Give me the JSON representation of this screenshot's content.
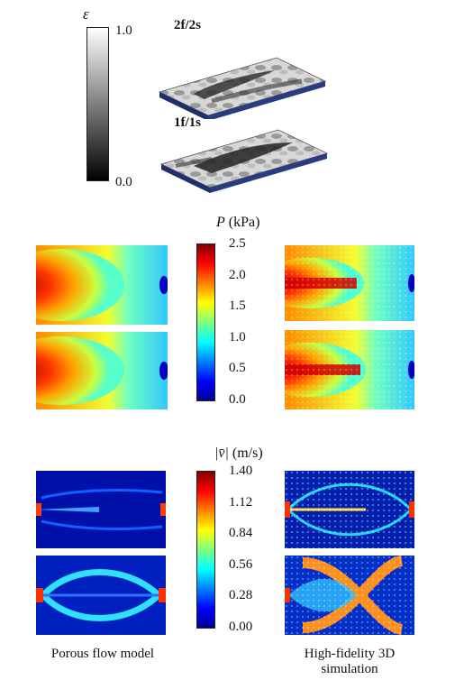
{
  "colors": {
    "jet_dark_blue": "#00008f",
    "jet_blue": "#0000ff",
    "jet_cyan": "#00ffff",
    "jet_yellow": "#ffff00",
    "jet_red": "#ff0000",
    "jet_dark_red": "#800000",
    "slab_side": "#1f2f6b"
  },
  "porosity_legend": {
    "symbol": "ε",
    "max_label": "1.0",
    "min_label": "0.0"
  },
  "slabs": [
    {
      "label": "2f/2s"
    },
    {
      "label": "1f/1s"
    }
  ],
  "pressure_colorbar": {
    "symbol": "P",
    "unit": "(kPa)",
    "ticks": [
      "2.5",
      "2.0",
      "1.5",
      "1.0",
      "0.5",
      "0.0"
    ]
  },
  "velocity_colorbar": {
    "symbol": "|v̄|",
    "unit": "(m/s)",
    "ticks": [
      "1.40",
      "1.12",
      "0.84",
      "0.56",
      "0.28",
      "0.00"
    ]
  },
  "captions": {
    "left": "Porous flow model",
    "right_line1": "High-fidelity 3D",
    "right_line2": "simulation"
  }
}
